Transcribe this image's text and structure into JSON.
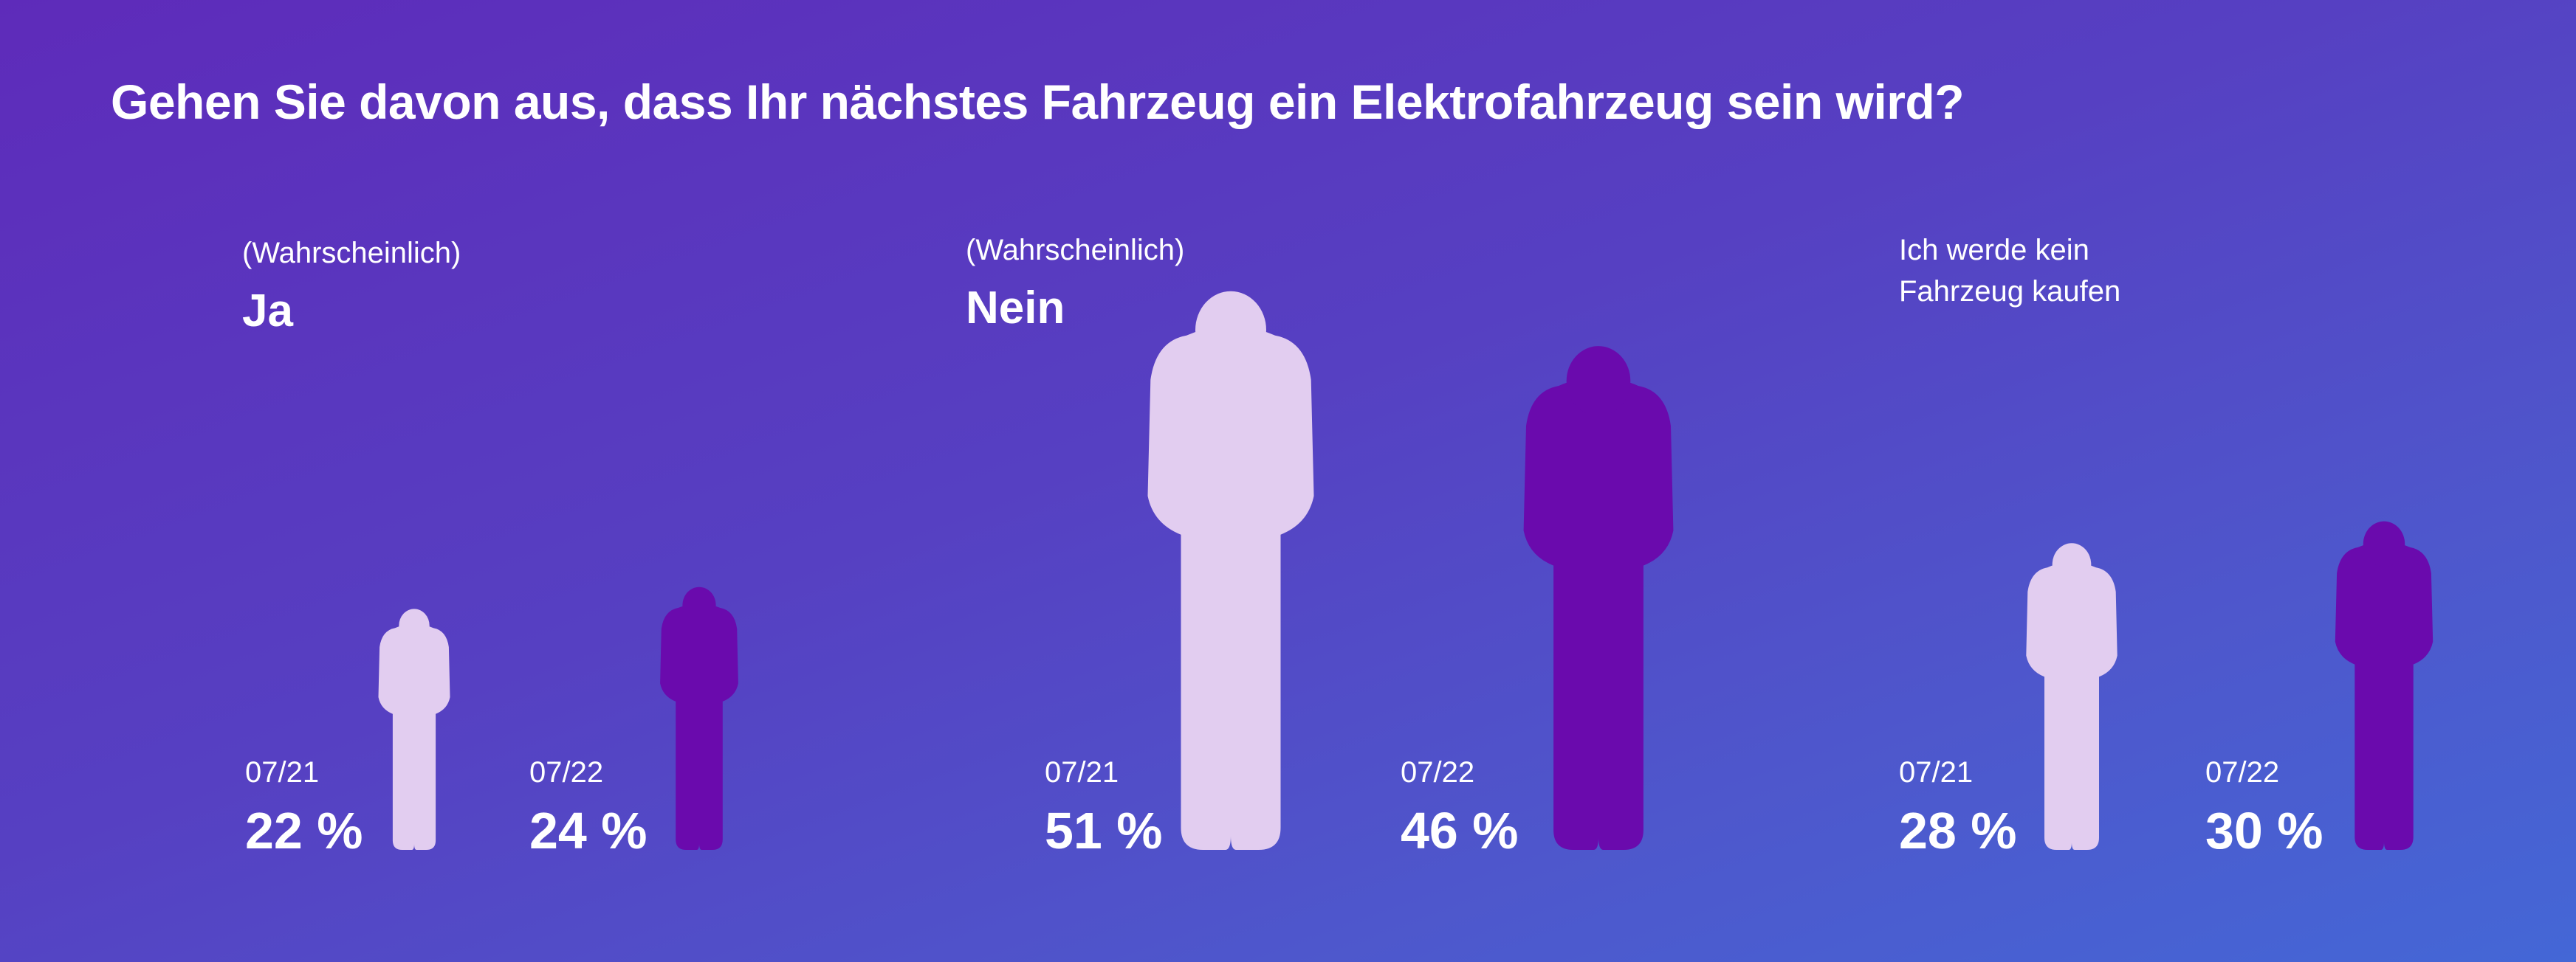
{
  "chart_data": {
    "type": "bar",
    "title": "Gehen Sie davon aus, dass Ihr nächstes Fahrzeug ein Elektrofahrzeug sein wird?",
    "groups": [
      {
        "sub": "(Wahrscheinlich)",
        "head": "Ja"
      },
      {
        "sub": "(Wahrscheinlich)",
        "head": "Nein"
      },
      {
        "sub": "Ich werde kein",
        "head": "Fahrzeug kaufen"
      }
    ],
    "categories": [
      "Ja",
      "Nein",
      "Ich werde kein Fahrzeug kaufen"
    ],
    "series": [
      {
        "name": "07/21",
        "values": [
          22,
          51,
          28
        ],
        "value_labels": [
          "22 %",
          "51 %",
          "28 %"
        ]
      },
      {
        "name": "07/22",
        "values": [
          24,
          46,
          30
        ],
        "value_labels": [
          "24 %",
          "46 %",
          "30 %"
        ]
      }
    ],
    "colors": {
      "07/21": "#e2cdf0",
      "07/22": "#6a0aad"
    },
    "unit": "%"
  }
}
